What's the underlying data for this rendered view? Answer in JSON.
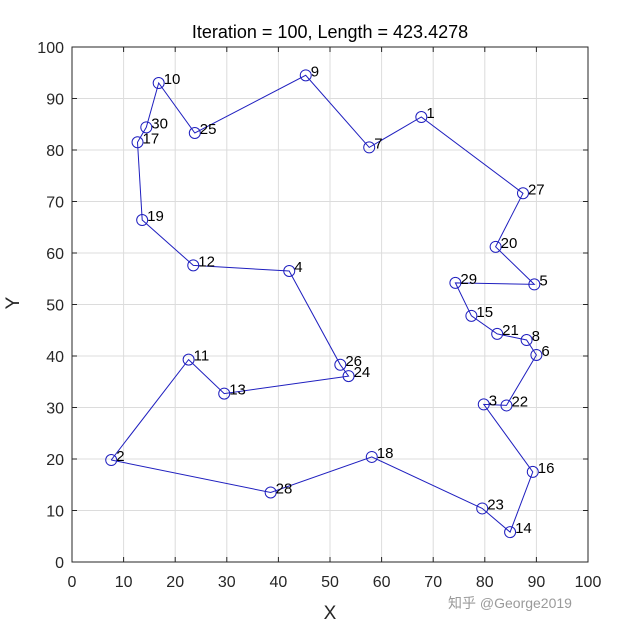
{
  "chart_data": {
    "type": "line",
    "title": "Iteration = 100, Length = 423.4278",
    "xlabel": "X",
    "ylabel": "Y",
    "xlim": [
      0,
      100
    ],
    "ylim": [
      0,
      100
    ],
    "xticks": [
      0,
      10,
      20,
      30,
      40,
      50,
      60,
      70,
      80,
      90,
      100
    ],
    "yticks": [
      0,
      10,
      20,
      30,
      40,
      50,
      60,
      70,
      80,
      90,
      100
    ],
    "grid": true,
    "colors": {
      "line": "#1f1fbf",
      "marker": "#1f1fbf",
      "grid": "#dcdcdc",
      "axis": "#262626"
    },
    "cities": [
      {
        "id": "1",
        "x": 67.7,
        "y": 86.4
      },
      {
        "id": "2",
        "x": 7.6,
        "y": 19.8
      },
      {
        "id": "3",
        "x": 79.8,
        "y": 30.6
      },
      {
        "id": "4",
        "x": 42.1,
        "y": 56.5
      },
      {
        "id": "5",
        "x": 89.6,
        "y": 53.9
      },
      {
        "id": "6",
        "x": 90.0,
        "y": 40.2
      },
      {
        "id": "7",
        "x": 57.6,
        "y": 80.5
      },
      {
        "id": "8",
        "x": 88.1,
        "y": 43.1
      },
      {
        "id": "9",
        "x": 45.3,
        "y": 94.5
      },
      {
        "id": "10",
        "x": 16.8,
        "y": 93.0
      },
      {
        "id": "11",
        "x": 22.6,
        "y": 39.3
      },
      {
        "id": "12",
        "x": 23.5,
        "y": 57.6
      },
      {
        "id": "13",
        "x": 29.5,
        "y": 32.7
      },
      {
        "id": "14",
        "x": 84.9,
        "y": 5.8
      },
      {
        "id": "15",
        "x": 77.4,
        "y": 47.8
      },
      {
        "id": "16",
        "x": 89.3,
        "y": 17.5
      },
      {
        "id": "17",
        "x": 12.7,
        "y": 81.5
      },
      {
        "id": "18",
        "x": 58.1,
        "y": 20.4
      },
      {
        "id": "19",
        "x": 13.6,
        "y": 66.4
      },
      {
        "id": "20",
        "x": 82.1,
        "y": 61.2
      },
      {
        "id": "21",
        "x": 82.4,
        "y": 44.3
      },
      {
        "id": "22",
        "x": 84.2,
        "y": 30.4
      },
      {
        "id": "23",
        "x": 79.5,
        "y": 10.4
      },
      {
        "id": "24",
        "x": 53.6,
        "y": 36.1
      },
      {
        "id": "25",
        "x": 23.8,
        "y": 83.3
      },
      {
        "id": "26",
        "x": 52.0,
        "y": 38.3
      },
      {
        "id": "27",
        "x": 87.4,
        "y": 71.6
      },
      {
        "id": "28",
        "x": 38.5,
        "y": 13.5
      },
      {
        "id": "29",
        "x": 74.3,
        "y": 54.2
      },
      {
        "id": "30",
        "x": 14.4,
        "y": 84.4
      }
    ],
    "route": [
      "2",
      "11",
      "13",
      "24",
      "26",
      "4",
      "12",
      "19",
      "17",
      "30",
      "10",
      "25",
      "9",
      "7",
      "1",
      "27",
      "20",
      "5",
      "29",
      "15",
      "21",
      "8",
      "6",
      "22",
      "3",
      "16",
      "14",
      "23",
      "18",
      "28",
      "2"
    ]
  },
  "watermark": "知乎 @George2019"
}
